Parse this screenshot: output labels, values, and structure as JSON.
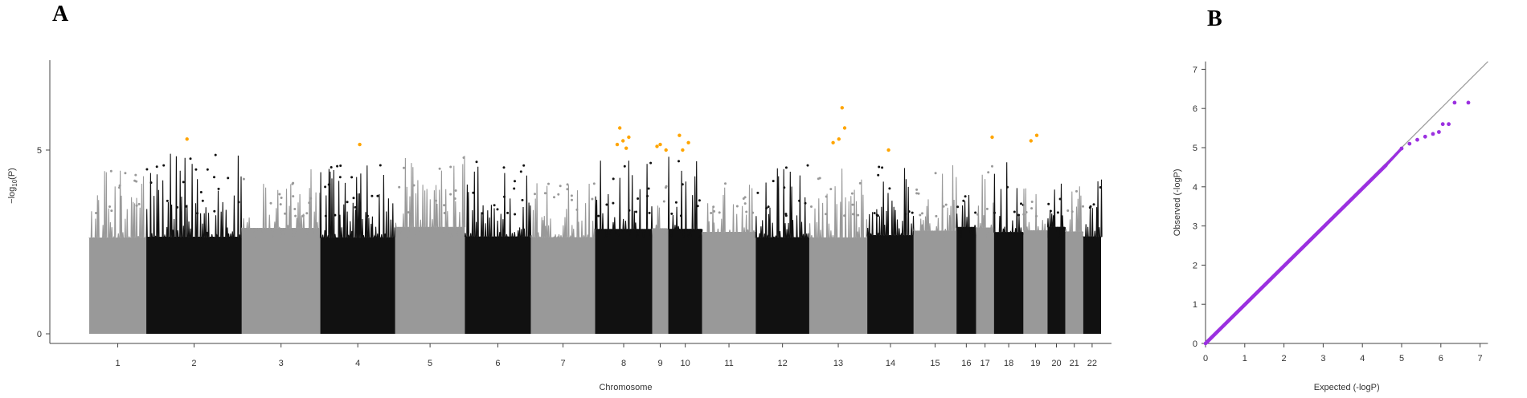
{
  "panels": {
    "a_label": "A",
    "b_label": "B"
  },
  "chart_data": [
    {
      "type": "scatter",
      "subtype": "manhattan",
      "xlabel": "Chromosome",
      "ylabel": "-log10(P)",
      "ylim": [
        0,
        7.5
      ],
      "y_ticks": [
        "0",
        "5"
      ],
      "y_tick_values": [
        0,
        5
      ],
      "grid": false,
      "chromosomes": [
        {
          "label": "1",
          "color": "#999999",
          "max": 4.6
        },
        {
          "label": "2",
          "color": "#111111",
          "max": 4.9
        },
        {
          "label": "3",
          "color": "#999999",
          "max": 4.5
        },
        {
          "label": "4",
          "color": "#111111",
          "max": 4.6
        },
        {
          "label": "5",
          "color": "#999999",
          "max": 4.9
        },
        {
          "label": "6",
          "color": "#111111",
          "max": 4.8
        },
        {
          "label": "7",
          "color": "#999999",
          "max": 4.1
        },
        {
          "label": "8",
          "color": "#111111",
          "max": 4.8
        },
        {
          "label": "9",
          "color": "#999999",
          "max": 4.6
        },
        {
          "label": "10",
          "color": "#111111",
          "max": 4.9
        },
        {
          "label": "11",
          "color": "#999999",
          "max": 4.1
        },
        {
          "label": "12",
          "color": "#111111",
          "max": 4.6
        },
        {
          "label": "13",
          "color": "#999999",
          "max": 4.5
        },
        {
          "label": "14",
          "color": "#111111",
          "max": 4.6
        },
        {
          "label": "15",
          "color": "#999999",
          "max": 4.6
        },
        {
          "label": "16",
          "color": "#111111",
          "max": 4.5
        },
        {
          "label": "17",
          "color": "#999999",
          "max": 4.7
        },
        {
          "label": "18",
          "color": "#111111",
          "max": 4.7
        },
        {
          "label": "19",
          "color": "#999999",
          "max": 4.0
        },
        {
          "label": "20",
          "color": "#111111",
          "max": 4.5
        },
        {
          "label": "21",
          "color": "#999999",
          "max": 4.5
        },
        {
          "label": "22",
          "color": "#111111",
          "max": 4.2
        }
      ],
      "highlight_color": "#FFA500",
      "significant_hits": [
        {
          "chr": "2",
          "y": 5.3
        },
        {
          "chr": "4",
          "y": 5.15
        },
        {
          "chr": "8",
          "y": 5.6
        },
        {
          "chr": "8",
          "y": 5.35
        },
        {
          "chr": "8",
          "y": 5.25
        },
        {
          "chr": "8",
          "y": 5.15
        },
        {
          "chr": "8",
          "y": 5.05
        },
        {
          "chr": "9",
          "y": 5.1
        },
        {
          "chr": "9",
          "y": 5.0
        },
        {
          "chr": "9",
          "y": 5.15
        },
        {
          "chr": "10",
          "y": 5.4
        },
        {
          "chr": "10",
          "y": 5.2
        },
        {
          "chr": "10",
          "y": 5.0
        },
        {
          "chr": "13",
          "y": 5.6
        },
        {
          "chr": "13",
          "y": 5.3
        },
        {
          "chr": "13",
          "y": 5.2
        },
        {
          "chr": "13",
          "y": 6.15
        },
        {
          "chr": "14",
          "y": 5.0
        },
        {
          "chr": "17",
          "y": 5.35
        },
        {
          "chr": "19",
          "y": 5.4
        },
        {
          "chr": "19",
          "y": 5.25
        }
      ]
    },
    {
      "type": "scatter",
      "subtype": "qq",
      "xlabel": "Expected (-logP)",
      "ylabel": "Observed (-logP)",
      "xlim": [
        0,
        7.2
      ],
      "ylim": [
        0,
        7.2
      ],
      "x_ticks": [
        "0",
        "1",
        "2",
        "3",
        "4",
        "5",
        "6",
        "7"
      ],
      "y_ticks": [
        "0",
        "1",
        "2",
        "3",
        "4",
        "5",
        "6",
        "7"
      ],
      "point_color": "#9B30E0",
      "reference_line": "y = x",
      "tail_points": [
        {
          "x": 5.0,
          "y": 4.98
        },
        {
          "x": 5.2,
          "y": 5.1
        },
        {
          "x": 5.4,
          "y": 5.2
        },
        {
          "x": 5.6,
          "y": 5.28
        },
        {
          "x": 5.8,
          "y": 5.35
        },
        {
          "x": 5.95,
          "y": 5.4
        },
        {
          "x": 6.05,
          "y": 5.6
        },
        {
          "x": 6.2,
          "y": 5.6
        },
        {
          "x": 6.35,
          "y": 6.15
        },
        {
          "x": 6.7,
          "y": 6.15
        }
      ]
    }
  ]
}
